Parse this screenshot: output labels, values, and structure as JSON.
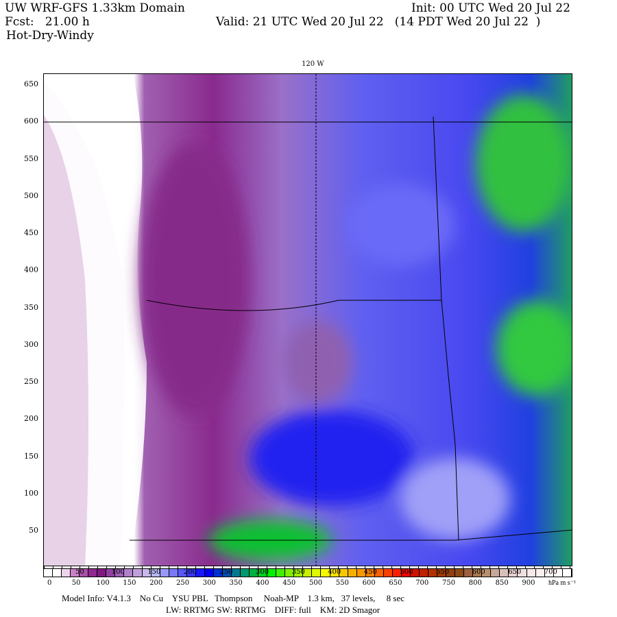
{
  "header": {
    "title": "UW WRF-GFS 1.33km Domain",
    "init": "Init: 00 UTC Wed 20 Jul 22",
    "fcst": "Fcst:   21.00 h",
    "valid": "Valid: 21 UTC Wed 20 Jul 22   (14 PDT Wed 20 Jul 22  )",
    "product": "Hot-Dry-Windy"
  },
  "map": {
    "longitude_label": "120 W",
    "y_ticks": [
      "650",
      "600",
      "550",
      "500",
      "450",
      "400",
      "350",
      "300",
      "250",
      "200",
      "150",
      "100",
      "50"
    ]
  },
  "colorbar": {
    "inner_labels": [
      "50",
      "100",
      "150",
      "200",
      "250",
      "300",
      "350",
      "400",
      "450",
      "500",
      "550",
      "600",
      "650",
      "700"
    ],
    "labels": [
      "0",
      "50",
      "100",
      "150",
      "200",
      "250",
      "300",
      "350",
      "400",
      "450",
      "500",
      "550",
      "600",
      "650",
      "700",
      "750",
      "800",
      "850",
      "900"
    ],
    "units": "hPa m s⁻¹",
    "colors": [
      "#ffffff",
      "#ffffff",
      "#ecd4ec",
      "#c880c8",
      "#a850a8",
      "#902890",
      "#801880",
      "#9040a0",
      "#a060b8",
      "#b080c8",
      "#c0a0d8",
      "#c8b8ec",
      "#b8b8f8",
      "#9898f8",
      "#7878f8",
      "#5858f8",
      "#3838f8",
      "#1818f8",
      "#0000f0",
      "#0030d0",
      "#0050b0",
      "#007890",
      "#009870",
      "#00b040",
      "#00d020",
      "#00f000",
      "#40f000",
      "#80f000",
      "#a0f000",
      "#c8f000",
      "#e0f800",
      "#f8f800",
      "#f8e000",
      "#f8c800",
      "#f8b000",
      "#f89800",
      "#f88000",
      "#f86000",
      "#f84000",
      "#f82000",
      "#f00000",
      "#d01000",
      "#c02000",
      "#b03000",
      "#a03800",
      "#904010",
      "#8c4818",
      "#9c6040",
      "#a87850",
      "#b89070",
      "#c8a898",
      "#d8c0b8",
      "#e8d0d0",
      "#f0e0e0",
      "#f8e8e8",
      "#fcf0f0",
      "#fff4f4",
      "#fff8f8",
      "#ffffff"
    ]
  },
  "footer": {
    "line1": "Model Info: V4.1.3    No Cu    YSU PBL   Thompson     Noah-MP    1.3 km,   37 levels,     8 sec",
    "line2": "LW: RRTMG SW: RRTMG    DIFF: full    KM: 2D Smagor"
  }
}
